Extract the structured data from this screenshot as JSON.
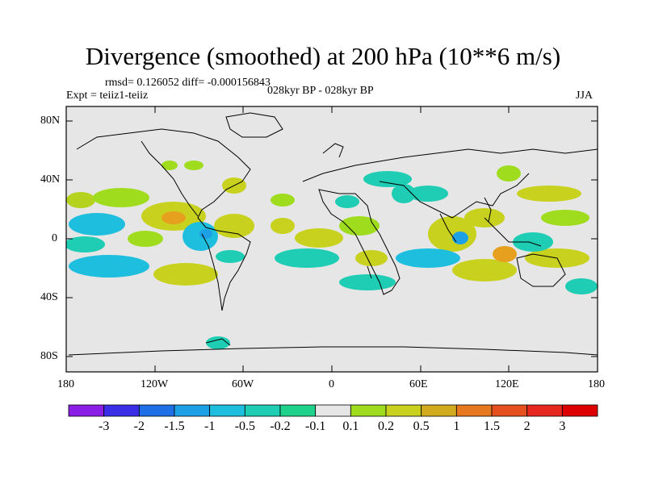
{
  "title": "Divergence (smoothed) at 200 hPa (10**6 m/s)",
  "stats": "rmsd= 0.126052 diff= -0.000156843",
  "experiment": "Expt = teiiz1-teiiz",
  "period": "028kyr BP - 028kyr BP",
  "season": "JJA",
  "lat_labels": [
    "80N",
    "40N",
    "0",
    "40S",
    "80S"
  ],
  "lon_labels": [
    "180",
    "120W",
    "60W",
    "0",
    "60E",
    "120E",
    "180"
  ],
  "colorbar": {
    "labels": [
      "-3",
      "-2",
      "-1.5",
      "-1",
      "-0.5",
      "-0.2",
      "-0.1",
      "0.1",
      "0.2",
      "0.5",
      "1",
      "1.5",
      "2",
      "3"
    ],
    "colors": [
      "#8a1ee6",
      "#3a2ee6",
      "#1e6ee6",
      "#1ea0e6",
      "#1ebede",
      "#1ecdb4",
      "#1ed28c",
      "#e6e6e6",
      "#a0dc1e",
      "#c8d21e",
      "#d2aa1e",
      "#e6781e",
      "#e6501e",
      "#e6281e",
      "#dc0000"
    ]
  }
}
